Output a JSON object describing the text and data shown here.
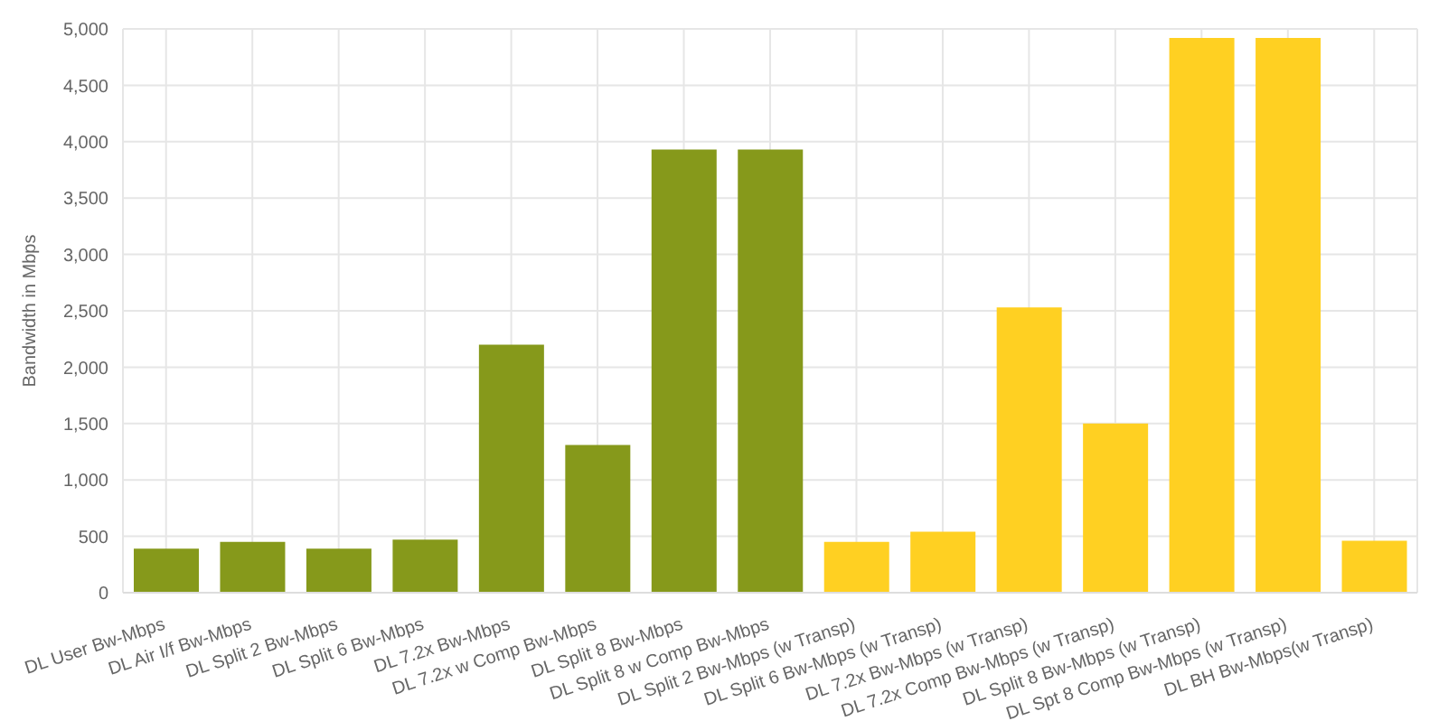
{
  "chart_data": {
    "type": "bar",
    "ylabel": "Bandwidth in Mbps",
    "categories": [
      "DL User Bw-Mbps",
      "DL Air I/f Bw-Mbps",
      "DL Split 2 Bw-Mbps",
      "DL Split 6 Bw-Mbps",
      "DL 7.2x Bw-Mbps",
      "DL 7.2x w Comp Bw-Mbps",
      "DL Split 8 Bw-Mbps",
      "DL Split 8 w Comp Bw-Mbps",
      "DL Split 2 Bw-Mbps (w Transp)",
      "DL Split 6 Bw-Mbps (w Transp)",
      "DL 7.2x Bw-Mbps (w Transp)",
      "DL 7.2x Comp Bw-Mbps (w Transp)",
      "DL Split 8 Bw-Mbps (w Transp)",
      "DL Spt 8 Comp Bw-Mbps (w Transp)",
      "DL BH Bw-Mbps(w Transp)"
    ],
    "values": [
      390,
      450,
      390,
      470,
      2200,
      1310,
      3930,
      3930,
      450,
      540,
      2530,
      1500,
      4920,
      4920,
      460
    ],
    "colors": [
      "#86991b",
      "#86991b",
      "#86991b",
      "#86991b",
      "#86991b",
      "#86991b",
      "#86991b",
      "#86991b",
      "#ffd022",
      "#ffd022",
      "#ffd022",
      "#ffd022",
      "#ffd022",
      "#ffd022",
      "#ffd022"
    ],
    "ylim": [
      0,
      5000
    ],
    "yticks": [
      0,
      500,
      {
        "value": 1000,
        "label": "1,000"
      },
      {
        "value": 1500,
        "label": "1,500"
      },
      {
        "value": 2000,
        "label": "2,000"
      },
      {
        "value": 2500,
        "label": "2,500"
      },
      {
        "value": 3000,
        "label": "3,000"
      },
      {
        "value": 3500,
        "label": "3,500"
      },
      {
        "value": 4000,
        "label": "4,000"
      },
      {
        "value": 4500,
        "label": "4,500"
      },
      {
        "value": 5000,
        "label": "5,000"
      }
    ],
    "grid": true
  }
}
